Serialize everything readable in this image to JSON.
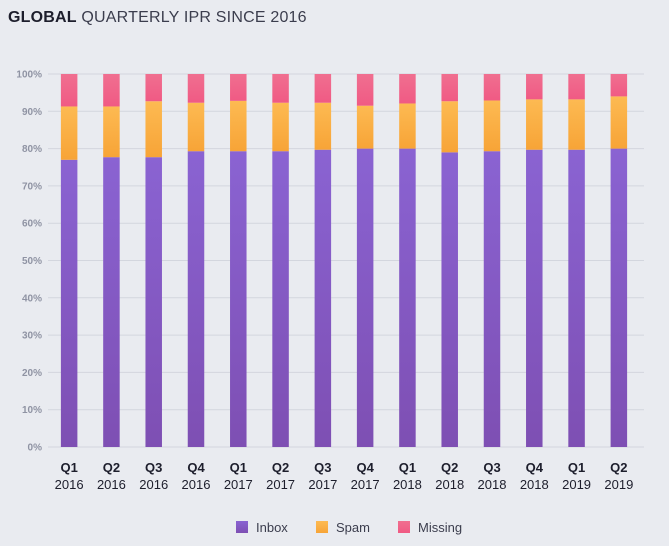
{
  "title": {
    "bold": "GLOBAL",
    "light": "QUARTERLY IPR SINCE 2016"
  },
  "chart_data": {
    "type": "bar",
    "stacked": true,
    "categories": [
      {
        "q": "Q1",
        "year": "2016"
      },
      {
        "q": "Q2",
        "year": "2016"
      },
      {
        "q": "Q3",
        "year": "2016"
      },
      {
        "q": "Q4",
        "year": "2016"
      },
      {
        "q": "Q1",
        "year": "2017"
      },
      {
        "q": "Q2",
        "year": "2017"
      },
      {
        "q": "Q3",
        "year": "2017"
      },
      {
        "q": "Q4",
        "year": "2017"
      },
      {
        "q": "Q1",
        "year": "2018"
      },
      {
        "q": "Q2",
        "year": "2018"
      },
      {
        "q": "Q3",
        "year": "2018"
      },
      {
        "q": "Q4",
        "year": "2018"
      },
      {
        "q": "Q1",
        "year": "2019"
      },
      {
        "q": "Q2",
        "year": "2019"
      }
    ],
    "series": [
      {
        "name": "Inbox",
        "color": "#8a63d2",
        "color_dark": "#7e4fb3",
        "values": [
          77,
          77.7,
          77.7,
          79.3,
          79.3,
          79.3,
          79.7,
          80,
          80,
          79,
          79.3,
          79.7,
          79.7,
          80
        ]
      },
      {
        "name": "Spam",
        "color": "#fdba52",
        "color_dark": "#f7a437",
        "values": [
          14.3,
          13.6,
          15,
          13,
          13.5,
          13,
          12.6,
          11.5,
          12.1,
          13.7,
          13.6,
          13.5,
          13.5,
          14
        ]
      },
      {
        "name": "Missing",
        "color": "#f06f90",
        "color_dark": "#f05a84",
        "values": [
          8.7,
          8.7,
          7.3,
          7.7,
          7.2,
          7.7,
          7.7,
          8.5,
          7.9,
          7.3,
          7.1,
          6.8,
          6.8,
          6
        ]
      }
    ],
    "yticks": [
      "0%",
      "10%",
      "20%",
      "30%",
      "40%",
      "50%",
      "60%",
      "70%",
      "80%",
      "90%",
      "100%"
    ],
    "ylim": [
      0,
      100
    ],
    "grid": true,
    "legend_position": "bottom"
  }
}
